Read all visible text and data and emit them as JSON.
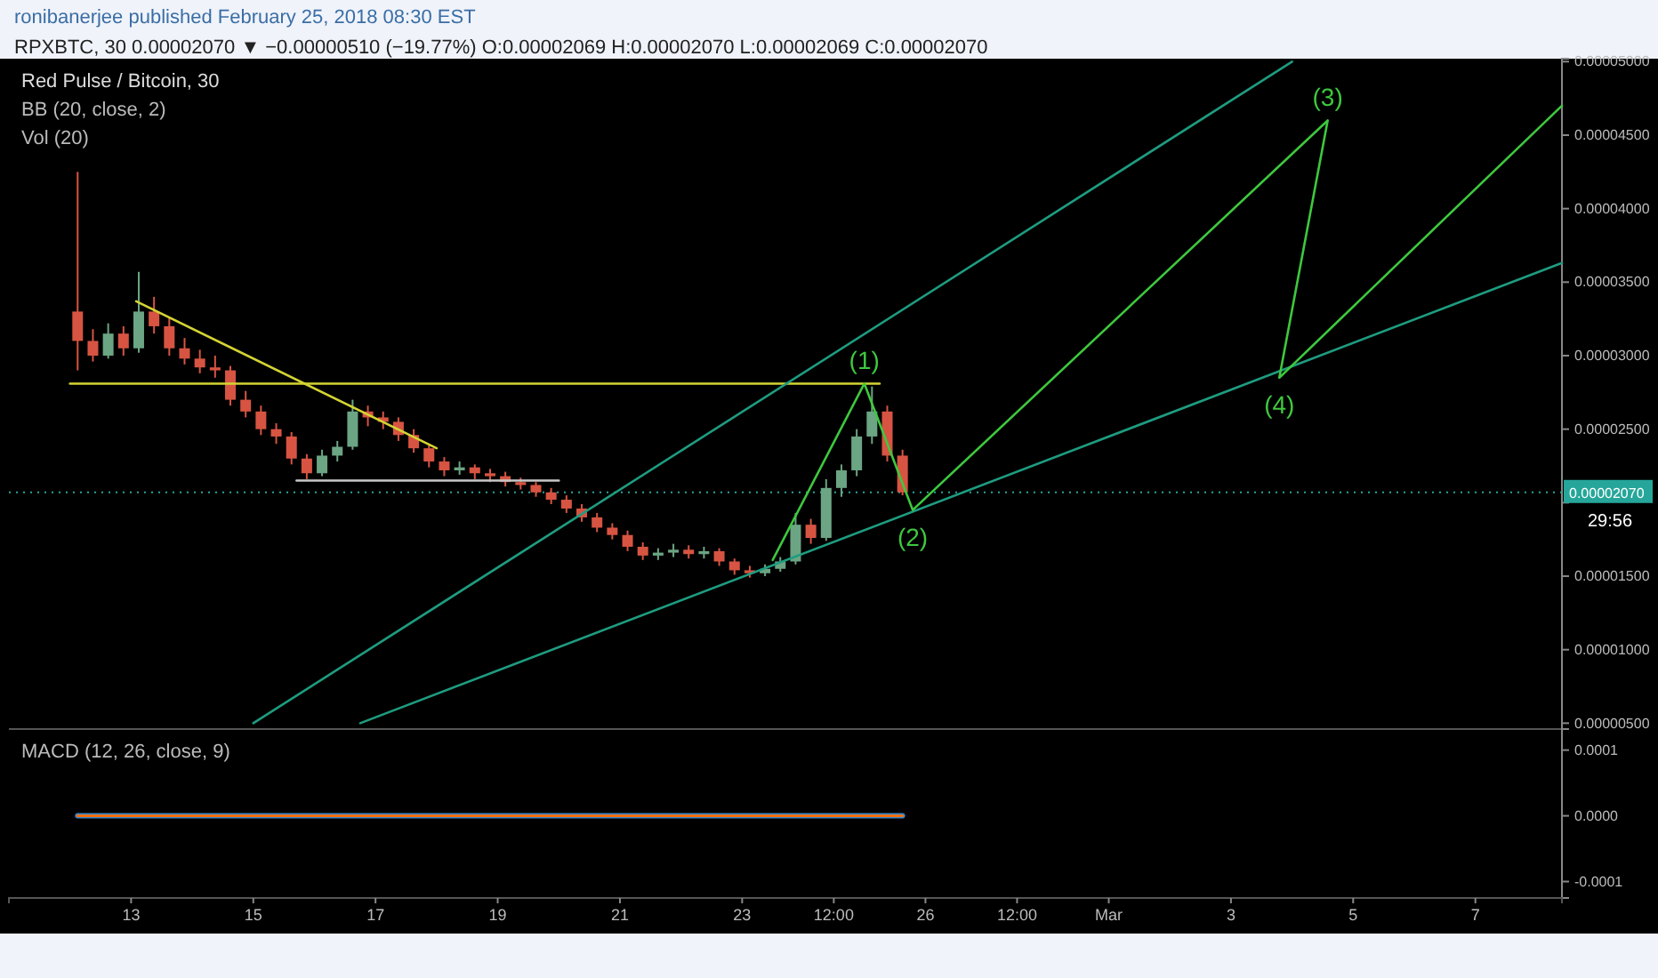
{
  "chart_data": [
    {
      "type": "candlestick",
      "title": "Red Pulse / Bitcoin, 30",
      "x": [
        "2018-02-12T03:00",
        "2018-02-12T09:00",
        "2018-02-12T15:00",
        "2018-02-12T21:00",
        "2018-02-13T03:00",
        "2018-02-13T09:00",
        "2018-02-13T15:00",
        "2018-02-13T21:00",
        "2018-02-14T03:00",
        "2018-02-14T09:00",
        "2018-02-14T15:00",
        "2018-02-14T21:00",
        "2018-02-15T03:00",
        "2018-02-15T09:00",
        "2018-02-15T15:00",
        "2018-02-15T21:00",
        "2018-02-16T03:00",
        "2018-02-16T09:00",
        "2018-02-16T15:00",
        "2018-02-16T21:00",
        "2018-02-17T03:00",
        "2018-02-17T09:00",
        "2018-02-17T15:00",
        "2018-02-17T21:00",
        "2018-02-18T03:00",
        "2018-02-18T09:00",
        "2018-02-18T15:00",
        "2018-02-18T21:00",
        "2018-02-19T03:00",
        "2018-02-19T09:00",
        "2018-02-19T15:00",
        "2018-02-19T21:00",
        "2018-02-20T03:00",
        "2018-02-20T09:00",
        "2018-02-20T15:00",
        "2018-02-20T21:00",
        "2018-02-21T03:00",
        "2018-02-21T09:00",
        "2018-02-21T15:00",
        "2018-02-21T21:00",
        "2018-02-22T03:00",
        "2018-02-22T09:00",
        "2018-02-22T15:00",
        "2018-02-22T21:00",
        "2018-02-23T03:00",
        "2018-02-23T09:00",
        "2018-02-23T15:00",
        "2018-02-23T21:00",
        "2018-02-24T03:00",
        "2018-02-24T09:00",
        "2018-02-24T15:00",
        "2018-02-24T21:00",
        "2018-02-25T03:00",
        "2018-02-25T09:00",
        "2018-02-25T15:00"
      ],
      "ohlc": [
        [
          3.3e-05,
          4.25e-05,
          2.9e-05,
          3.1e-05
        ],
        [
          3.1e-05,
          3.18e-05,
          2.96e-05,
          3e-05
        ],
        [
          3e-05,
          3.22e-05,
          2.98e-05,
          3.15e-05
        ],
        [
          3.15e-05,
          3.2e-05,
          3e-05,
          3.05e-05
        ],
        [
          3.05e-05,
          3.57e-05,
          3.02e-05,
          3.3e-05
        ],
        [
          3.3e-05,
          3.4e-05,
          3.15e-05,
          3.2e-05
        ],
        [
          3.2e-05,
          3.26e-05,
          3e-05,
          3.05e-05
        ],
        [
          3.05e-05,
          3.12e-05,
          2.94e-05,
          2.98e-05
        ],
        [
          2.98e-05,
          3.04e-05,
          2.88e-05,
          2.92e-05
        ],
        [
          2.92e-05,
          3e-05,
          2.85e-05,
          2.9e-05
        ],
        [
          2.9e-05,
          2.93e-05,
          2.66e-05,
          2.7e-05
        ],
        [
          2.7e-05,
          2.76e-05,
          2.58e-05,
          2.62e-05
        ],
        [
          2.62e-05,
          2.66e-05,
          2.46e-05,
          2.5e-05
        ],
        [
          2.5e-05,
          2.54e-05,
          2.4e-05,
          2.45e-05
        ],
        [
          2.45e-05,
          2.48e-05,
          2.26e-05,
          2.3e-05
        ],
        [
          2.3e-05,
          2.33e-05,
          2.16e-05,
          2.2e-05
        ],
        [
          2.2e-05,
          2.36e-05,
          2.18e-05,
          2.32e-05
        ],
        [
          2.32e-05,
          2.42e-05,
          2.28e-05,
          2.38e-05
        ],
        [
          2.38e-05,
          2.7e-05,
          2.36e-05,
          2.62e-05
        ],
        [
          2.62e-05,
          2.66e-05,
          2.52e-05,
          2.58e-05
        ],
        [
          2.58e-05,
          2.62e-05,
          2.5e-05,
          2.55e-05
        ],
        [
          2.55e-05,
          2.58e-05,
          2.42e-05,
          2.46e-05
        ],
        [
          2.46e-05,
          2.5e-05,
          2.34e-05,
          2.37e-05
        ],
        [
          2.37e-05,
          2.4e-05,
          2.24e-05,
          2.28e-05
        ],
        [
          2.28e-05,
          2.31e-05,
          2.18e-05,
          2.22e-05
        ],
        [
          2.22e-05,
          2.28e-05,
          2.19e-05,
          2.24e-05
        ],
        [
          2.24e-05,
          2.26e-05,
          2.16e-05,
          2.2e-05
        ],
        [
          2.2e-05,
          2.23e-05,
          2.14e-05,
          2.18e-05
        ],
        [
          2.18e-05,
          2.21e-05,
          2.11e-05,
          2.14e-05
        ],
        [
          2.14e-05,
          2.17e-05,
          2.09e-05,
          2.12e-05
        ],
        [
          2.12e-05,
          2.14e-05,
          2.04e-05,
          2.07e-05
        ],
        [
          2.07e-05,
          2.1e-05,
          1.99e-05,
          2.02e-05
        ],
        [
          2.02e-05,
          2.05e-05,
          1.93e-05,
          1.96e-05
        ],
        [
          1.96e-05,
          1.99e-05,
          1.87e-05,
          1.9e-05
        ],
        [
          1.9e-05,
          1.93e-05,
          1.8e-05,
          1.83e-05
        ],
        [
          1.83e-05,
          1.86e-05,
          1.75e-05,
          1.78e-05
        ],
        [
          1.78e-05,
          1.81e-05,
          1.67e-05,
          1.7e-05
        ],
        [
          1.7e-05,
          1.73e-05,
          1.61e-05,
          1.64e-05
        ],
        [
          1.64e-05,
          1.69e-05,
          1.61e-05,
          1.66e-05
        ],
        [
          1.66e-05,
          1.72e-05,
          1.63e-05,
          1.68e-05
        ],
        [
          1.68e-05,
          1.71e-05,
          1.62e-05,
          1.65e-05
        ],
        [
          1.65e-05,
          1.7e-05,
          1.62e-05,
          1.67e-05
        ],
        [
          1.67e-05,
          1.69e-05,
          1.57e-05,
          1.6e-05
        ],
        [
          1.6e-05,
          1.62e-05,
          1.51e-05,
          1.54e-05
        ],
        [
          1.54e-05,
          1.57e-05,
          1.49e-05,
          1.52e-05
        ],
        [
          1.52e-05,
          1.58e-05,
          1.5e-05,
          1.55e-05
        ],
        [
          1.55e-05,
          1.63e-05,
          1.53e-05,
          1.6e-05
        ],
        [
          1.6e-05,
          1.93e-05,
          1.58e-05,
          1.85e-05
        ],
        [
          1.85e-05,
          1.89e-05,
          1.72e-05,
          1.76e-05
        ],
        [
          1.76e-05,
          2.16e-05,
          1.74e-05,
          2.1e-05
        ],
        [
          2.1e-05,
          2.26e-05,
          2.04e-05,
          2.22e-05
        ],
        [
          2.22e-05,
          2.5e-05,
          2.18e-05,
          2.45e-05
        ],
        [
          2.45e-05,
          2.79e-05,
          2.4e-05,
          2.62e-05
        ],
        [
          2.62e-05,
          2.66e-05,
          2.28e-05,
          2.32e-05
        ],
        [
          2.32e-05,
          2.36e-05,
          2.05e-05,
          2.07e-05
        ]
      ],
      "colors": [
        "#d75442",
        "#d75442",
        "#6ba583",
        "#d75442",
        "#6ba583",
        "#d75442",
        "#d75442",
        "#d75442",
        "#d75442",
        "#d75442",
        "#d75442",
        "#d75442",
        "#d75442",
        "#d75442",
        "#d75442",
        "#d75442",
        "#6ba583",
        "#6ba583",
        "#6ba583",
        "#d75442",
        "#d75442",
        "#d75442",
        "#d75442",
        "#d75442",
        "#d75442",
        "#6ba583",
        "#d75442",
        "#d75442",
        "#d75442",
        "#d75442",
        "#d75442",
        "#d75442",
        "#d75442",
        "#d75442",
        "#d75442",
        "#d75442",
        "#d75442",
        "#d75442",
        "#6ba583",
        "#6ba583",
        "#d75442",
        "#6ba583",
        "#d75442",
        "#d75442",
        "#d75442",
        "#6ba583",
        "#6ba583",
        "#6ba583",
        "#d75442",
        "#6ba583",
        "#6ba583",
        "#6ba583",
        "#6ba583",
        "#d75442",
        "#d75442"
      ],
      "series": [
        {
          "type": "line",
          "color": "#d4d433",
          "x": [
            "2018-02-12T00:00",
            "2018-02-25T06:00"
          ],
          "values": [
            2.81e-05,
            2.81e-05
          ]
        },
        {
          "type": "line",
          "color": "#d4d433",
          "x": [
            "2018-02-13T02:00",
            "2018-02-18T00:00"
          ],
          "values": [
            3.37e-05,
            2.37e-05
          ]
        },
        {
          "type": "line",
          "color": "#c8c8c8",
          "x": [
            "2018-02-15T17:00",
            "2018-02-20T00:00"
          ],
          "values": [
            2.15e-05,
            2.15e-05
          ]
        },
        {
          "type": "line",
          "color": "#1e9c80",
          "x": [
            "2018-02-15T00:00",
            "2018-03-04T00:00"
          ],
          "values": [
            5e-06,
            5e-05
          ]
        },
        {
          "type": "line",
          "color": "#1e9c80",
          "x": [
            "2018-02-16T18:00",
            "2018-03-08T10:00"
          ],
          "values": [
            5e-06,
            3.63e-05
          ]
        },
        {
          "type": "line",
          "color": "#3ec83e",
          "x": [
            "2018-02-23T12:00",
            "2018-02-25T00:00",
            "2018-02-25T19:00",
            "2018-03-04T14:00",
            "2018-03-03T19:00",
            "2018-03-08T10:00"
          ],
          "values": [
            1.61e-05,
            2.81e-05,
            1.95e-05,
            4.6e-05,
            2.85e-05,
            4.7e-05
          ]
        }
      ],
      "xlim": [
        "2018-02-11T00:00",
        "2018-03-08T10:00"
      ],
      "ylim": [
        4.6e-06,
        5.02e-05
      ],
      "yticks": [
        {
          "value": 5e-06,
          "label": "0.00000500"
        },
        {
          "value": 1e-05,
          "label": "0.00001000"
        },
        {
          "value": 1.5e-05,
          "label": "0.00001500"
        },
        {
          "value": 2e-05,
          "label": null
        },
        {
          "value": 2.5e-05,
          "label": "0.00002500"
        },
        {
          "value": 3e-05,
          "label": "0.00003000"
        },
        {
          "value": 3.5e-05,
          "label": "0.00003500"
        },
        {
          "value": 4e-05,
          "label": "0.00004000"
        },
        {
          "value": 4.5e-05,
          "label": "0.00004500"
        },
        {
          "value": 5e-05,
          "label": "0.00005000"
        }
      ],
      "ref_lines": [
        {
          "axis": "y",
          "value": 2.07e-05,
          "label": "0.00002070",
          "color": "#26a69a",
          "line_style": "dotted"
        }
      ],
      "annotations": [
        "ronibanerjee published February 25, 2018 08:30 EST",
        "RPXBTC, 30 0.00002070 ▼ −0.00000510 (−19.77%) O:0.00002069 H:0.00002070 L:0.00002069 C:0.00002070",
        "BB (20, close, 2)",
        "Vol (20)",
        "29:56",
        {
          "text": "(1)",
          "x": "2018-02-25T00:00",
          "y": 2.81e-05
        },
        {
          "text": "(2)",
          "x": "2018-02-25T19:00",
          "y": 1.95e-05
        },
        {
          "text": "(3)",
          "x": "2018-03-04T14:00",
          "y": 4.6e-05
        },
        {
          "text": "(4)",
          "x": "2018-03-03T19:00",
          "y": 2.85e-05
        }
      ],
      "tick_labels": "y"
    },
    {
      "type": "line",
      "title": "MACD (12, 26, close, 9)",
      "series": [
        {
          "color": "#3d85c6",
          "x": [
            "2018-02-12T03:00",
            "2018-02-14T03:00",
            "2018-02-16T03:00",
            "2018-02-18T03:00",
            "2018-02-20T03:00",
            "2018-02-22T03:00",
            "2018-02-24T03:00",
            "2018-02-25T15:00"
          ],
          "values": [
            0,
            0,
            0,
            0,
            0,
            0,
            0,
            0
          ]
        },
        {
          "color": "#ff6d00",
          "x": [
            "2018-02-12T03:00",
            "2018-02-14T03:00",
            "2018-02-16T03:00",
            "2018-02-18T03:00",
            "2018-02-20T03:00",
            "2018-02-22T03:00",
            "2018-02-24T03:00",
            "2018-02-25T15:00"
          ],
          "values": [
            0,
            0,
            0,
            0,
            0,
            0,
            0,
            0
          ]
        }
      ],
      "xlim": [
        "2018-02-11T00:00",
        "2018-03-08T10:00"
      ],
      "xticks": [
        {
          "value": "2018-02-13",
          "label": "13"
        },
        {
          "value": "2018-02-15",
          "label": "15"
        },
        {
          "value": "2018-02-17",
          "label": "17"
        },
        {
          "value": "2018-02-19",
          "label": "19"
        },
        {
          "value": "2018-02-21",
          "label": "21"
        },
        {
          "value": "2018-02-23",
          "label": "23"
        },
        {
          "value": "2018-02-24T12:00",
          "label": "12:00"
        },
        {
          "value": "2018-02-26",
          "label": "26"
        },
        {
          "value": "2018-02-27T12:00",
          "label": "12:00"
        },
        {
          "value": "2018-03-01",
          "label": "Mar"
        },
        {
          "value": "2018-03-03",
          "label": "3"
        },
        {
          "value": "2018-03-05",
          "label": "5"
        },
        {
          "value": "2018-03-07",
          "label": "7"
        }
      ],
      "ylim": [
        -0.000125,
        0.000132
      ],
      "yticks": [
        {
          "value": 0.0001,
          "label": "0.0001"
        },
        {
          "value": 0,
          "label": "0.0000"
        },
        {
          "value": -0.0001,
          "label": "-0.0001"
        }
      ]
    }
  ]
}
